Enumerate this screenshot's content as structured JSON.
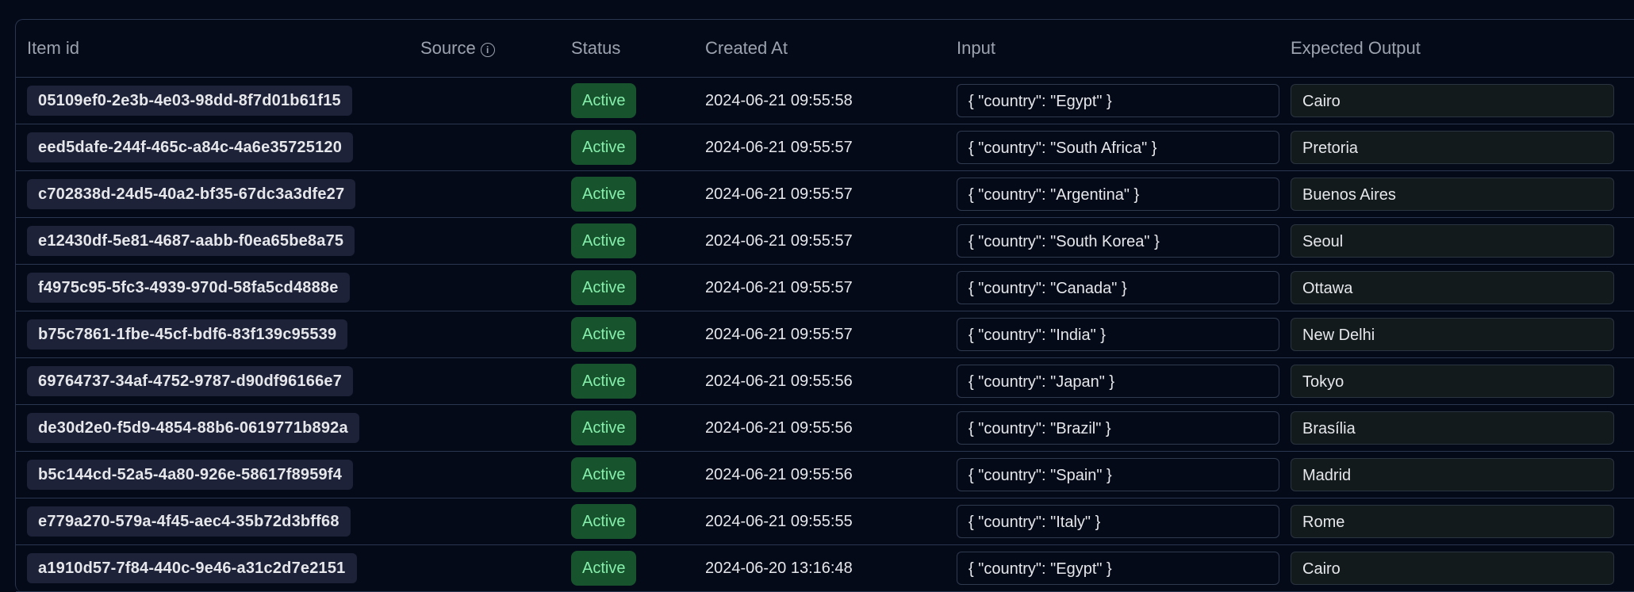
{
  "table": {
    "headers": {
      "item_id": "Item id",
      "source": "Source",
      "status": "Status",
      "created_at": "Created At",
      "input": "Input",
      "expected_output": "Expected Output"
    },
    "rows": [
      {
        "id": "05109ef0-2e3b-4e03-98dd-8f7d01b61f15",
        "status": "Active",
        "created": "2024-06-21 09:55:58",
        "input": "{ \"country\": \"Egypt\" }",
        "output": "Cairo"
      },
      {
        "id": "eed5dafe-244f-465c-a84c-4a6e35725120",
        "status": "Active",
        "created": "2024-06-21 09:55:57",
        "input": "{ \"country\": \"South Africa\" }",
        "output": "Pretoria"
      },
      {
        "id": "c702838d-24d5-40a2-bf35-67dc3a3dfe27",
        "status": "Active",
        "created": "2024-06-21 09:55:57",
        "input": "{ \"country\": \"Argentina\" }",
        "output": "Buenos Aires"
      },
      {
        "id": "e12430df-5e81-4687-aabb-f0ea65be8a75",
        "status": "Active",
        "created": "2024-06-21 09:55:57",
        "input": "{ \"country\": \"South Korea\" }",
        "output": "Seoul"
      },
      {
        "id": "f4975c95-5fc3-4939-970d-58fa5cd4888e",
        "status": "Active",
        "created": "2024-06-21 09:55:57",
        "input": "{ \"country\": \"Canada\" }",
        "output": "Ottawa"
      },
      {
        "id": "b75c7861-1fbe-45cf-bdf6-83f139c95539",
        "status": "Active",
        "created": "2024-06-21 09:55:57",
        "input": "{ \"country\": \"India\" }",
        "output": "New Delhi"
      },
      {
        "id": "69764737-34af-4752-9787-d90df96166e7",
        "status": "Active",
        "created": "2024-06-21 09:55:56",
        "input": "{ \"country\": \"Japan\" }",
        "output": "Tokyo"
      },
      {
        "id": "de30d2e0-f5d9-4854-88b6-0619771b892a",
        "status": "Active",
        "created": "2024-06-21 09:55:56",
        "input": "{ \"country\": \"Brazil\" }",
        "output": "Brasília"
      },
      {
        "id": "b5c144cd-52a5-4a80-926e-58617f8959f4",
        "status": "Active",
        "created": "2024-06-21 09:55:56",
        "input": "{ \"country\": \"Spain\" }",
        "output": "Madrid"
      },
      {
        "id": "e779a270-579a-4f45-aec4-35b72d3bff68",
        "status": "Active",
        "created": "2024-06-21 09:55:55",
        "input": "{ \"country\": \"Italy\" }",
        "output": "Rome"
      },
      {
        "id": "a1910d57-7f84-440c-9e46-a31c2d7e2151",
        "status": "Active",
        "created": "2024-06-20 13:16:48",
        "input": "{ \"country\": \"Egypt\" }",
        "output": "Cairo"
      }
    ]
  },
  "colors": {
    "background": "#050a18",
    "status_active_bg": "#17532c",
    "status_active_text": "#86efac",
    "id_pill_bg": "#1e2238"
  },
  "icons": {
    "source_info": "info-circle-icon"
  }
}
